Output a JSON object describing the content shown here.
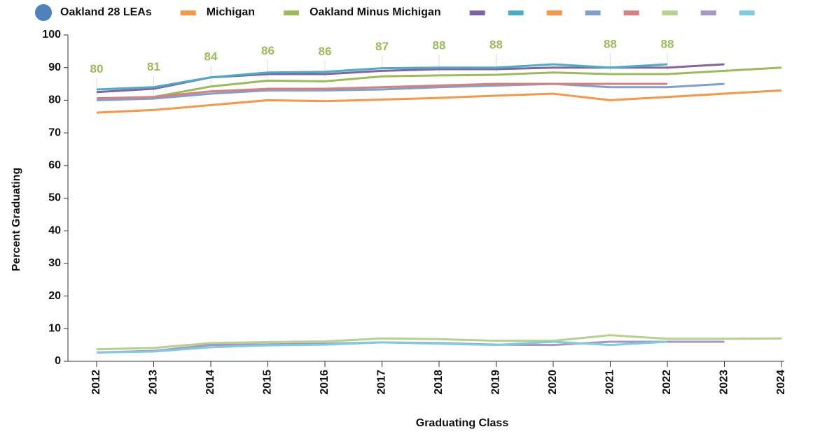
{
  "chart_data": {
    "type": "line",
    "x_label": "Graduating Class",
    "y_label": "Percent Graduating",
    "categories": [
      "2012",
      "2013",
      "2014",
      "2015",
      "2016",
      "2017",
      "2018",
      "2019",
      "2020",
      "2021",
      "2022",
      "2023",
      "2024"
    ],
    "ylim": [
      0,
      100
    ],
    "yticks": [
      0,
      10,
      20,
      30,
      40,
      50,
      60,
      70,
      80,
      90,
      100
    ],
    "series": [
      {
        "name": "Oakland 28 LEAs",
        "color": "#4f81bd",
        "values": [
          null,
          null,
          null,
          null,
          null,
          null,
          null,
          null,
          null,
          null,
          null,
          null,
          null
        ]
      },
      {
        "name": "Michigan",
        "color": "#f79646",
        "values": [
          76.2,
          77,
          78.5,
          80,
          79.7,
          80.2,
          80.7,
          81.4,
          82,
          80,
          81,
          82,
          83
        ]
      },
      {
        "name": "Oakland Minus Michigan",
        "color": "#9bbb59",
        "values": [
          80.4,
          81,
          84.2,
          86,
          85.8,
          87.3,
          87.6,
          87.8,
          88.5,
          88,
          88,
          89,
          90
        ],
        "value_labels": [
          "80",
          "81",
          "84",
          "86",
          "86",
          "87",
          "88",
          "88",
          null,
          "88",
          "88",
          null,
          null
        ]
      },
      {
        "color": "#8064a2",
        "values": [
          82.5,
          83.5,
          87,
          88,
          88,
          89,
          89.5,
          89.5,
          90,
          90,
          90,
          91,
          null
        ]
      },
      {
        "color": "#4bacc6",
        "values": [
          83.3,
          84,
          87,
          88.5,
          88.7,
          89.8,
          90,
          90,
          91,
          90,
          91,
          null,
          null
        ]
      },
      {
        "color": "#f79646",
        "values": [
          null,
          null,
          null,
          null,
          null,
          null,
          null,
          null,
          null,
          null,
          null,
          null,
          null
        ]
      },
      {
        "color": "#7f9fcf",
        "values": [
          80,
          80.5,
          82,
          83,
          83,
          83.3,
          84,
          84.5,
          85,
          84,
          84,
          85,
          null
        ]
      },
      {
        "color": "#d9807e",
        "values": [
          80.6,
          81,
          82.7,
          83.5,
          83.5,
          84,
          84.5,
          85,
          85,
          85,
          85,
          null,
          null
        ]
      },
      {
        "color": "#b5d18b",
        "values": [
          3.7,
          4.1,
          5.6,
          5.9,
          6.1,
          7,
          6.8,
          6.3,
          6.3,
          8,
          6.9,
          6.9,
          7
        ]
      },
      {
        "color": "#a797c4",
        "values": [
          2.7,
          3.2,
          5,
          5.2,
          5.4,
          5.8,
          5.6,
          5.1,
          5,
          6,
          6,
          6,
          null
        ]
      },
      {
        "color": "#7fcbe0",
        "values": [
          2.7,
          3,
          4.3,
          4.9,
          5.1,
          5.8,
          5.4,
          5,
          6,
          5,
          6,
          null,
          null
        ]
      }
    ]
  }
}
